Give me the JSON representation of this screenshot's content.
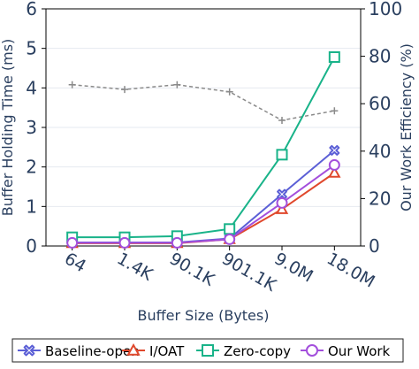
{
  "chart_data": {
    "type": "line",
    "categories": [
      "64",
      "1.4K",
      "90.1K",
      "901.1K",
      "9.0M",
      "18.0M"
    ],
    "xlabel": "Buffer Size (Bytes)",
    "ylabel": "Buffer Holding Time (ms)",
    "y2label": "Our Work Efficiency (%)",
    "ylim": [
      0,
      6
    ],
    "y2lim": [
      0,
      100
    ],
    "yticks": [
      0,
      1,
      2,
      3,
      4,
      5,
      6
    ],
    "y2ticks": [
      0,
      20,
      40,
      60,
      80,
      100
    ],
    "grid": "horizontal",
    "legend_position": "bottom",
    "series": [
      {
        "name": "Baseline-open",
        "color": "#5b5fd6",
        "marker": "x-square",
        "values": [
          0.09,
          0.09,
          0.09,
          0.19,
          1.31,
          2.42
        ]
      },
      {
        "name": "I/OAT",
        "color": "#e0482c",
        "marker": "triangle",
        "values": [
          0.07,
          0.07,
          0.07,
          0.17,
          0.93,
          1.85
        ]
      },
      {
        "name": "Zero-copy",
        "color": "#19b389",
        "marker": "square",
        "values": [
          0.22,
          0.22,
          0.25,
          0.43,
          2.31,
          4.78
        ]
      },
      {
        "name": "Our Work",
        "color": "#a34fdc",
        "marker": "circle",
        "values": [
          0.08,
          0.08,
          0.08,
          0.17,
          1.09,
          2.05
        ]
      }
    ],
    "efficiency_series": {
      "axis": "right",
      "color": "#8a8a8a",
      "marker": "plus",
      "style": "dashed",
      "values": [
        68,
        66,
        68,
        65,
        53,
        57
      ]
    }
  }
}
